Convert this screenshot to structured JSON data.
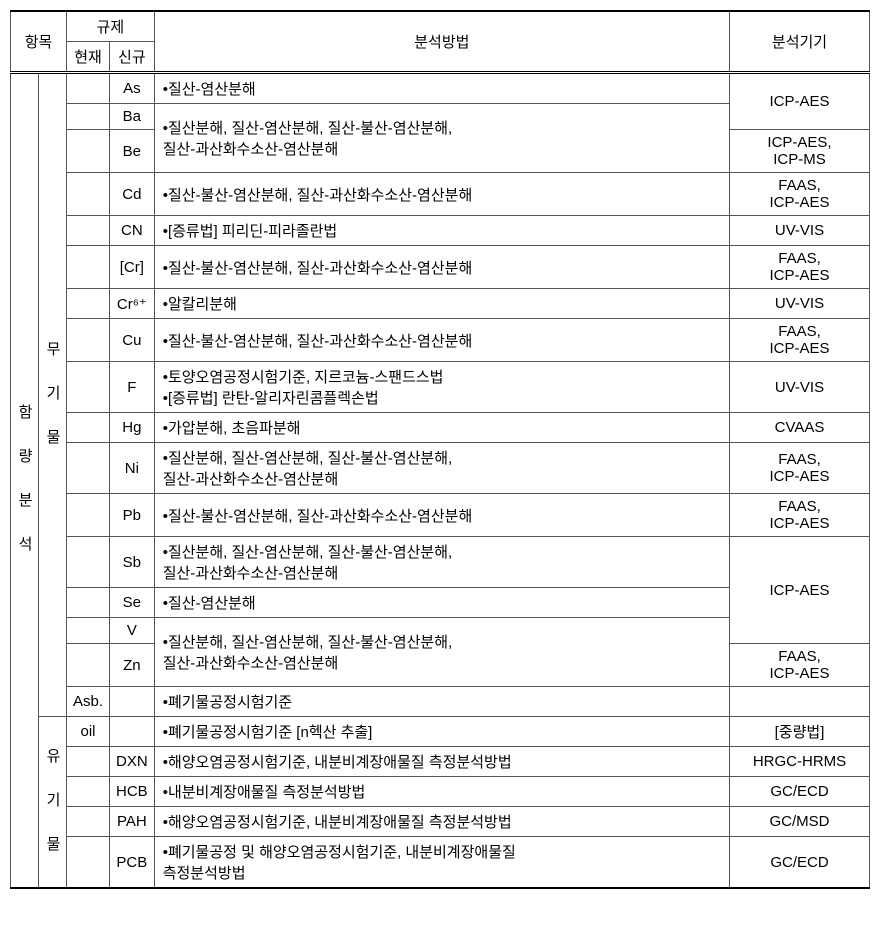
{
  "headers": {
    "item": "항목",
    "regulation": "규제",
    "current": "현재",
    "new": "신규",
    "method": "분석방법",
    "instrument": "분석기기"
  },
  "section1": {
    "label": "함 량 분 석"
  },
  "inorg": {
    "label": "무 기 물",
    "rows": [
      {
        "id": "As",
        "method": "•질산-염산분해",
        "instr": "ICP-AES",
        "instrRowspan": 2
      },
      {
        "id": "Ba",
        "method": "•질산분해, 질산-염산분해, 질산-불산-염산분해,\n 질산-과산화수소산-염산분해",
        "methodRowspan": 2
      },
      {
        "id": "Be",
        "instr": "ICP-AES,\nICP-MS"
      },
      {
        "id": "Cd",
        "method": "•질산-불산-염산분해, 질산-과산화수소산-염산분해",
        "instr": "FAAS,\nICP-AES"
      },
      {
        "id": "CN",
        "method": "•[증류법] 피리딘-피라졸란법",
        "instr": "UV-VIS"
      },
      {
        "id": "[Cr]",
        "method": "•질산-불산-염산분해, 질산-과산화수소산-염산분해",
        "instr": "FAAS,\nICP-AES"
      },
      {
        "id": "Cr⁶⁺",
        "method": "•알칼리분해",
        "instr": "UV-VIS"
      },
      {
        "id": "Cu",
        "method": "•질산-불산-염산분해, 질산-과산화수소산-염산분해",
        "instr": "FAAS,\nICP-AES"
      },
      {
        "id": "F",
        "method": "•토양오염공정시험기준, 지르코늄-스팬드스법\n•[증류법] 란탄-알리자린콤플렉손법",
        "instr": "UV-VIS"
      },
      {
        "id": "Hg",
        "method": "•가압분해, 초음파분해",
        "instr": "CVAAS"
      },
      {
        "id": "Ni",
        "method": "•질산분해, 질산-염산분해, 질산-불산-염산분해,\n 질산-과산화수소산-염산분해",
        "instr": "FAAS,\nICP-AES"
      },
      {
        "id": "Pb",
        "method": "•질산-불산-염산분해, 질산-과산화수소산-염산분해",
        "instr": "FAAS,\nICP-AES"
      },
      {
        "id": "Sb",
        "method": "•질산분해, 질산-염산분해, 질산-불산-염산분해,\n 질산-과산화수소산-염산분해",
        "instr": "ICP-AES",
        "instrRowspan": 3
      },
      {
        "id": "Se",
        "method": "•질산-염산분해"
      },
      {
        "id": "V",
        "method": "•질산분해, 질산-염산분해, 질산-불산-염산분해,\n질산-과산화수소산-염산분해",
        "methodRowspan": 2
      },
      {
        "id": "Zn",
        "instr": "FAAS,\nICP-AES"
      }
    ],
    "asb": {
      "id": "Asb.",
      "method": "•폐기물공정시험기준",
      "instr": ""
    }
  },
  "org": {
    "label": "유 기 물",
    "rows": [
      {
        "id": "oil",
        "current": "oil",
        "new": "",
        "method": "•폐기물공정시험기준 [n헥산 추출]",
        "instr": "[중량법]"
      },
      {
        "id": "DXN",
        "method": "•해양오염공정시험기준, 내분비계장애물질 측정분석방법",
        "instr": "HRGC-HRMS"
      },
      {
        "id": "HCB",
        "method": "•내분비계장애물질 측정분석방법",
        "instr": "GC/ECD"
      },
      {
        "id": "PAH",
        "method": "•해양오염공정시험기준, 내분비계장애물질 측정분석방법",
        "instr": "GC/MSD"
      },
      {
        "id": "PCB",
        "method": "•폐기물공정 및 해양오염공정시험기준, 내분비계장애물질\n 측정분석방법",
        "instr": "GC/ECD"
      }
    ]
  },
  "style": {
    "border_color": "#555",
    "heavy_border": "#000",
    "font_size": 15,
    "bg": "#ffffff"
  }
}
